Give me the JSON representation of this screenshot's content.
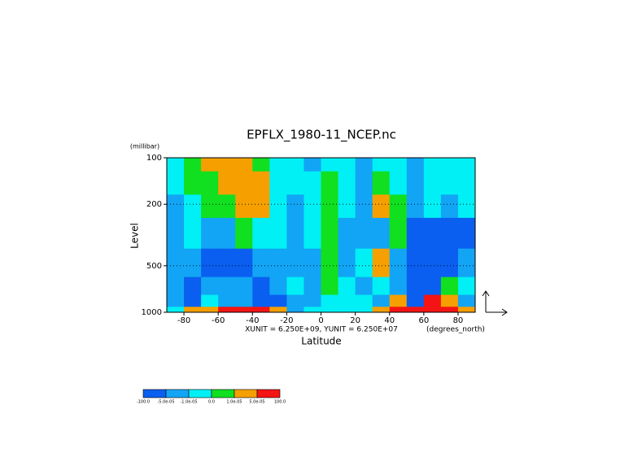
{
  "chart_data": {
    "type": "contour",
    "title": "EPFLX_1980-11_NCEP.nc",
    "xlabel": "Latitude",
    "ylabel": "Level",
    "yunits": "(millibar)",
    "xunits": "(degrees_north)",
    "note": "XUNIT = 6.250E+09, YUNIT = 6.250E+07",
    "xlim": [
      -90,
      90
    ],
    "xticks": [
      -80,
      -60,
      -40,
      -20,
      0,
      20,
      40,
      60,
      80
    ],
    "ylim": [
      1000,
      100
    ],
    "yticks": [
      100,
      200,
      500,
      1000
    ],
    "ylog": true,
    "grid": true,
    "x": [
      -85,
      -75,
      -65,
      -55,
      -45,
      -35,
      -25,
      -15,
      -5,
      5,
      15,
      25,
      35,
      45,
      55,
      65,
      75,
      85
    ],
    "y": [
      100,
      150,
      200,
      300,
      500,
      700,
      850,
      1000
    ],
    "z": [
      [
        -5e-06,
        5e-06,
        3e-05,
        3e-05,
        3e-05,
        5e-06,
        -5e-06,
        -5e-06,
        -3e-05,
        -5e-06,
        -5e-06,
        -3e-05,
        -5e-06,
        -5e-06,
        -3e-05,
        -5e-06,
        -5e-06,
        -5e-06
      ],
      [
        -5e-06,
        5e-06,
        5e-06,
        3e-05,
        3e-05,
        3e-05,
        -5e-06,
        -5e-06,
        -5e-06,
        5e-06,
        -5e-06,
        -3e-05,
        5e-06,
        -5e-06,
        -3e-05,
        -5e-06,
        -5e-06,
        -5e-06
      ],
      [
        -3e-05,
        -5e-06,
        5e-06,
        5e-06,
        3e-05,
        3e-05,
        -5e-06,
        -3e-05,
        -5e-06,
        5e-06,
        -5e-06,
        -3e-05,
        3e-05,
        5e-06,
        -3e-05,
        -5e-06,
        -3e-05,
        -5e-06
      ],
      [
        -3e-05,
        -5e-06,
        -3e-05,
        -3e-05,
        5e-06,
        -5e-06,
        -5e-06,
        -3e-05,
        -5e-06,
        5e-06,
        -3e-05,
        -3e-05,
        -3e-05,
        5e-06,
        -0.0001,
        -0.0001,
        -0.0001,
        -0.0001
      ],
      [
        -3e-05,
        -3e-05,
        -0.0001,
        -0.0001,
        -0.0001,
        -3e-05,
        -3e-05,
        -3e-05,
        -3e-05,
        5e-06,
        -3e-05,
        -5e-06,
        3e-05,
        -3e-05,
        -0.0001,
        -0.0001,
        -0.0001,
        -3e-05
      ],
      [
        -3e-05,
        -0.0001,
        -3e-05,
        -3e-05,
        -3e-05,
        -0.0001,
        -3e-05,
        -5e-06,
        -3e-05,
        5e-06,
        -5e-06,
        -3e-05,
        -5e-06,
        -3e-05,
        -0.0001,
        -0.0001,
        5e-06,
        -5e-06
      ],
      [
        -3e-05,
        -0.0001,
        -5e-06,
        -3e-05,
        -3e-05,
        -0.0001,
        -0.0001,
        -3e-05,
        -3e-05,
        -5e-06,
        -5e-06,
        -5e-06,
        -3e-05,
        3e-05,
        -0.0001,
        0.0001,
        3e-05,
        -3e-05
      ],
      [
        -5e-06,
        3e-05,
        3e-05,
        0.0001,
        0.0001,
        0.0001,
        3e-05,
        -3e-05,
        -5e-06,
        -5e-06,
        -5e-06,
        -5e-06,
        3e-05,
        0.0001,
        0.0001,
        0.0001,
        0.0001,
        3e-05
      ]
    ],
    "levels": [
      {
        "value": -100,
        "label": "-100.0"
      },
      {
        "value": -5e-05,
        "label": "-5.0e-05"
      },
      {
        "value": -1e-05,
        "label": "-1.0e-05"
      },
      {
        "value": 0,
        "label": "0.0"
      },
      {
        "value": 1e-05,
        "label": "1.0e-05"
      },
      {
        "value": 5e-05,
        "label": "5.0e-05"
      },
      {
        "value": 100,
        "label": "100.0"
      }
    ],
    "colors": [
      "#0a5ff0",
      "#12a5f5",
      "#00f0f5",
      "#10e020",
      "#f5a000",
      "#f51414"
    ]
  }
}
